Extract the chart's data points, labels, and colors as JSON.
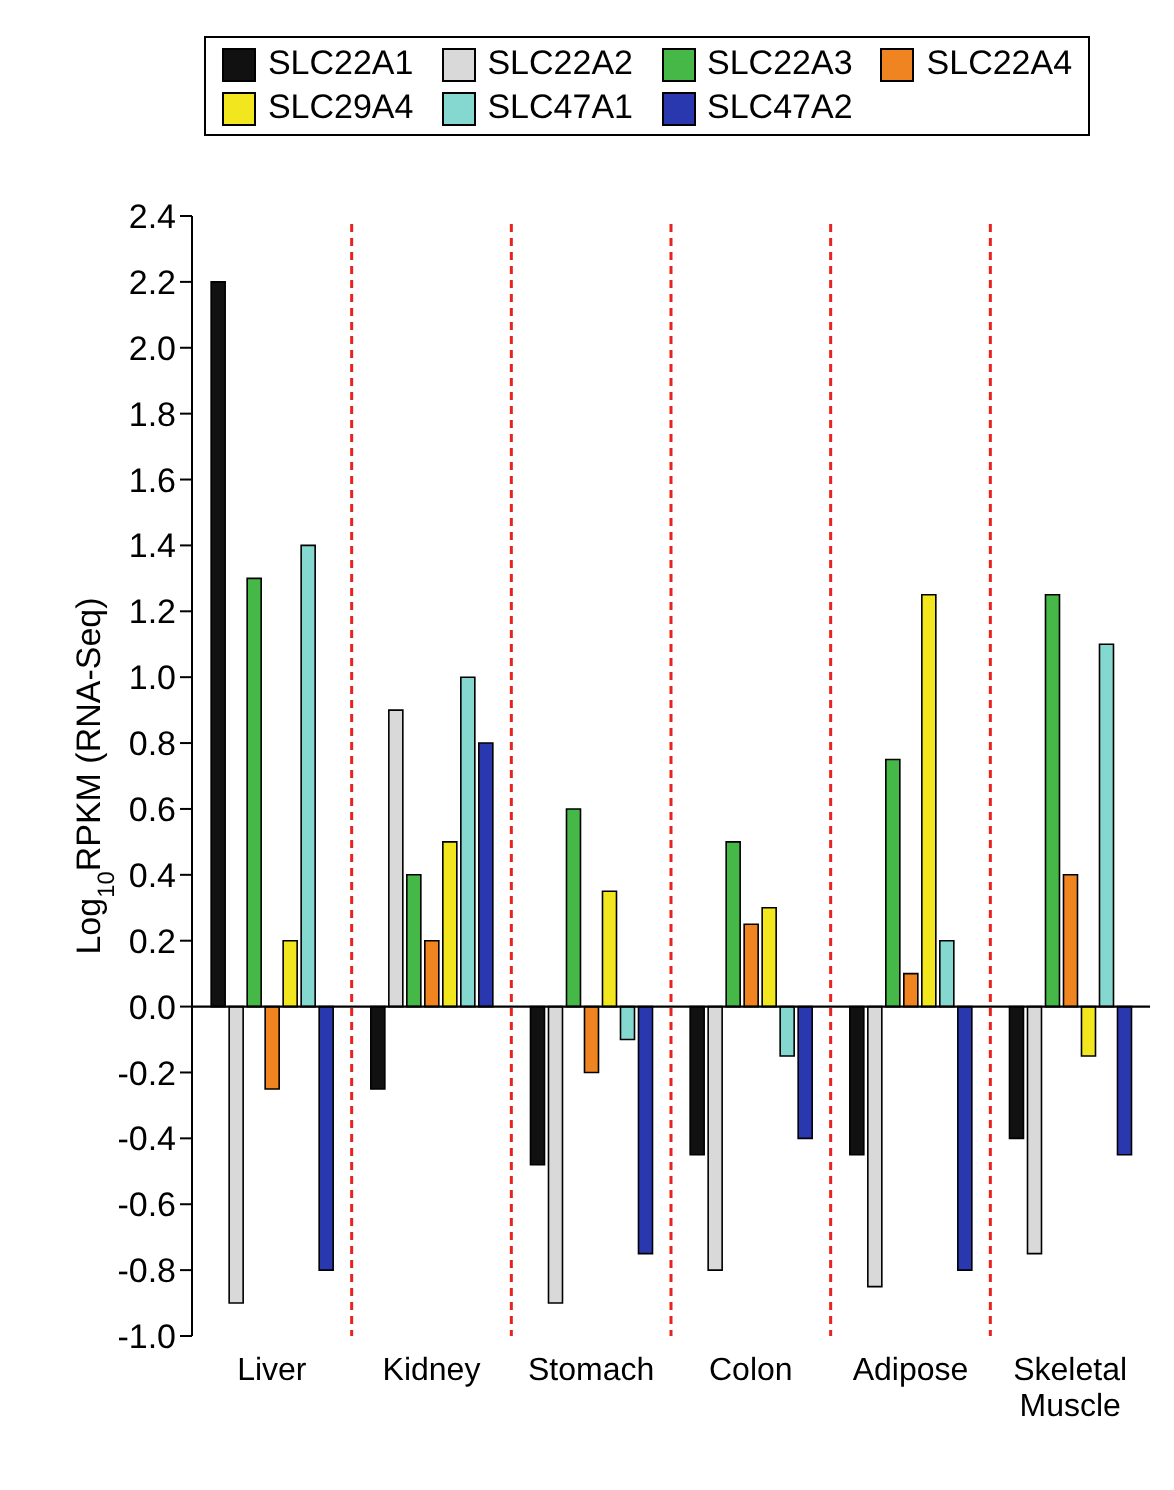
{
  "chart_data": {
    "type": "bar",
    "ylabel": "Log$_{10}$RPKM (RNA-Seq)",
    "categories": [
      "Liver",
      "Kidney",
      "Stomach",
      "Colon",
      "Adipose",
      "Skeletal Muscle"
    ],
    "series": [
      {
        "name": "SLC22A1",
        "color": "#111111",
        "values": [
          2.2,
          -0.25,
          -0.48,
          -0.45,
          -0.45,
          -0.4
        ]
      },
      {
        "name": "SLC22A2",
        "color": "#d9d9d9",
        "values": [
          -0.9,
          0.9,
          -0.9,
          -0.8,
          -0.85,
          -0.75
        ]
      },
      {
        "name": "SLC22A3",
        "color": "#46b848",
        "values": [
          1.3,
          0.4,
          0.6,
          0.5,
          0.75,
          1.25
        ]
      },
      {
        "name": "SLC22A4",
        "color": "#f08420",
        "values": [
          -0.25,
          0.2,
          -0.2,
          0.25,
          0.1,
          0.4
        ]
      },
      {
        "name": "SLC29A4",
        "color": "#f2e61e",
        "values": [
          0.2,
          0.5,
          0.35,
          0.3,
          1.25,
          -0.15
        ]
      },
      {
        "name": "SLC47A1",
        "color": "#84d8d0",
        "values": [
          1.4,
          1.0,
          -0.1,
          -0.15,
          0.2,
          1.1
        ]
      },
      {
        "name": "SLC47A2",
        "color": "#2a38b0",
        "values": [
          -0.8,
          0.8,
          -0.75,
          -0.4,
          -0.8,
          -0.45
        ]
      }
    ],
    "ylim": [
      -1,
      2.4
    ],
    "yticks": [
      {
        "value": -1,
        "label": "-1.0"
      },
      -0.8,
      -0.6,
      -0.4,
      -0.2,
      {
        "value": 0,
        "label": "0.0"
      },
      0.2,
      0.4,
      0.6,
      0.8,
      {
        "value": 1,
        "label": "1.0"
      },
      1.2,
      1.4,
      1.6,
      1.8,
      {
        "value": 2,
        "label": "2.0"
      },
      2.2,
      2.4
    ],
    "ref_lines": [
      {
        "axis": "y",
        "value": 0,
        "color": "#000000",
        "line_style": "solid"
      }
    ],
    "legend": "top",
    "grid": false
  }
}
